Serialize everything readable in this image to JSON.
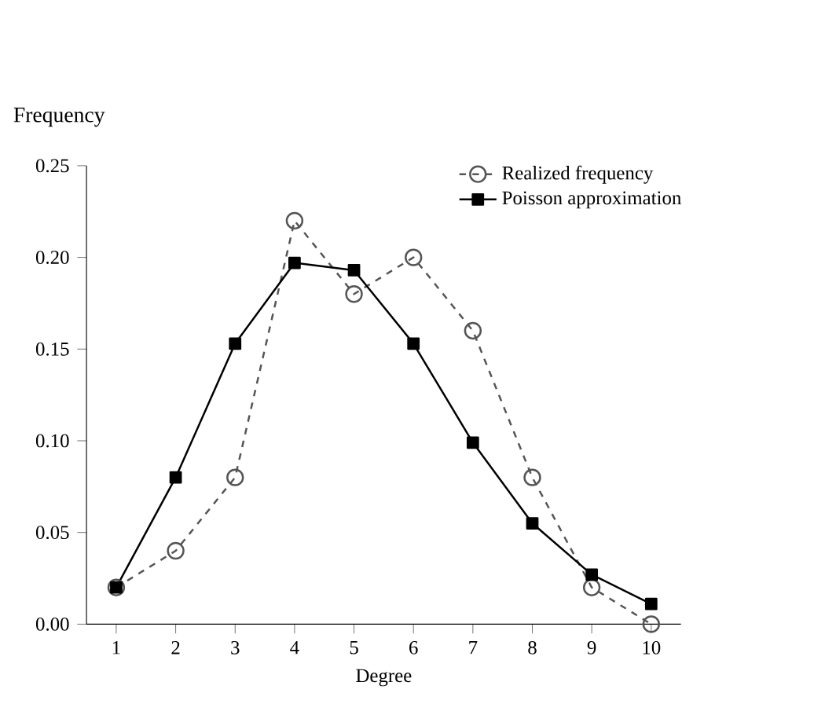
{
  "chart_data": {
    "type": "line",
    "xlabel": "Degree",
    "ylabel": "Frequency",
    "x": [
      1,
      2,
      3,
      4,
      5,
      6,
      7,
      8,
      9,
      10
    ],
    "series": [
      {
        "name": "Realized frequency",
        "color": "#555555",
        "marker": "circle",
        "line_style": "dashed",
        "values": [
          0.02,
          0.04,
          0.08,
          0.22,
          0.18,
          0.2,
          0.16,
          0.08,
          0.02,
          0.0
        ]
      },
      {
        "name": "Poisson approximation",
        "color": "#000000",
        "marker": "square",
        "line_style": "solid",
        "values": [
          0.02,
          0.08,
          0.153,
          0.197,
          0.193,
          0.153,
          0.099,
          0.055,
          0.027,
          0.011
        ]
      }
    ],
    "xlim": [
      0.5,
      10.5
    ],
    "ylim": [
      0,
      0.25
    ],
    "xticks": [
      1,
      2,
      3,
      4,
      5,
      6,
      7,
      8,
      9,
      10
    ],
    "yticks": [
      {
        "value": 0,
        "label": "0.00"
      },
      {
        "value": 0.05,
        "label": "0.05"
      },
      {
        "value": 0.1,
        "label": "0.10"
      },
      {
        "value": 0.15,
        "label": "0.15"
      },
      {
        "value": 0.2,
        "label": "0.20"
      },
      {
        "value": 0.25,
        "label": "0.25"
      }
    ],
    "grid": false,
    "legend": "top right"
  }
}
